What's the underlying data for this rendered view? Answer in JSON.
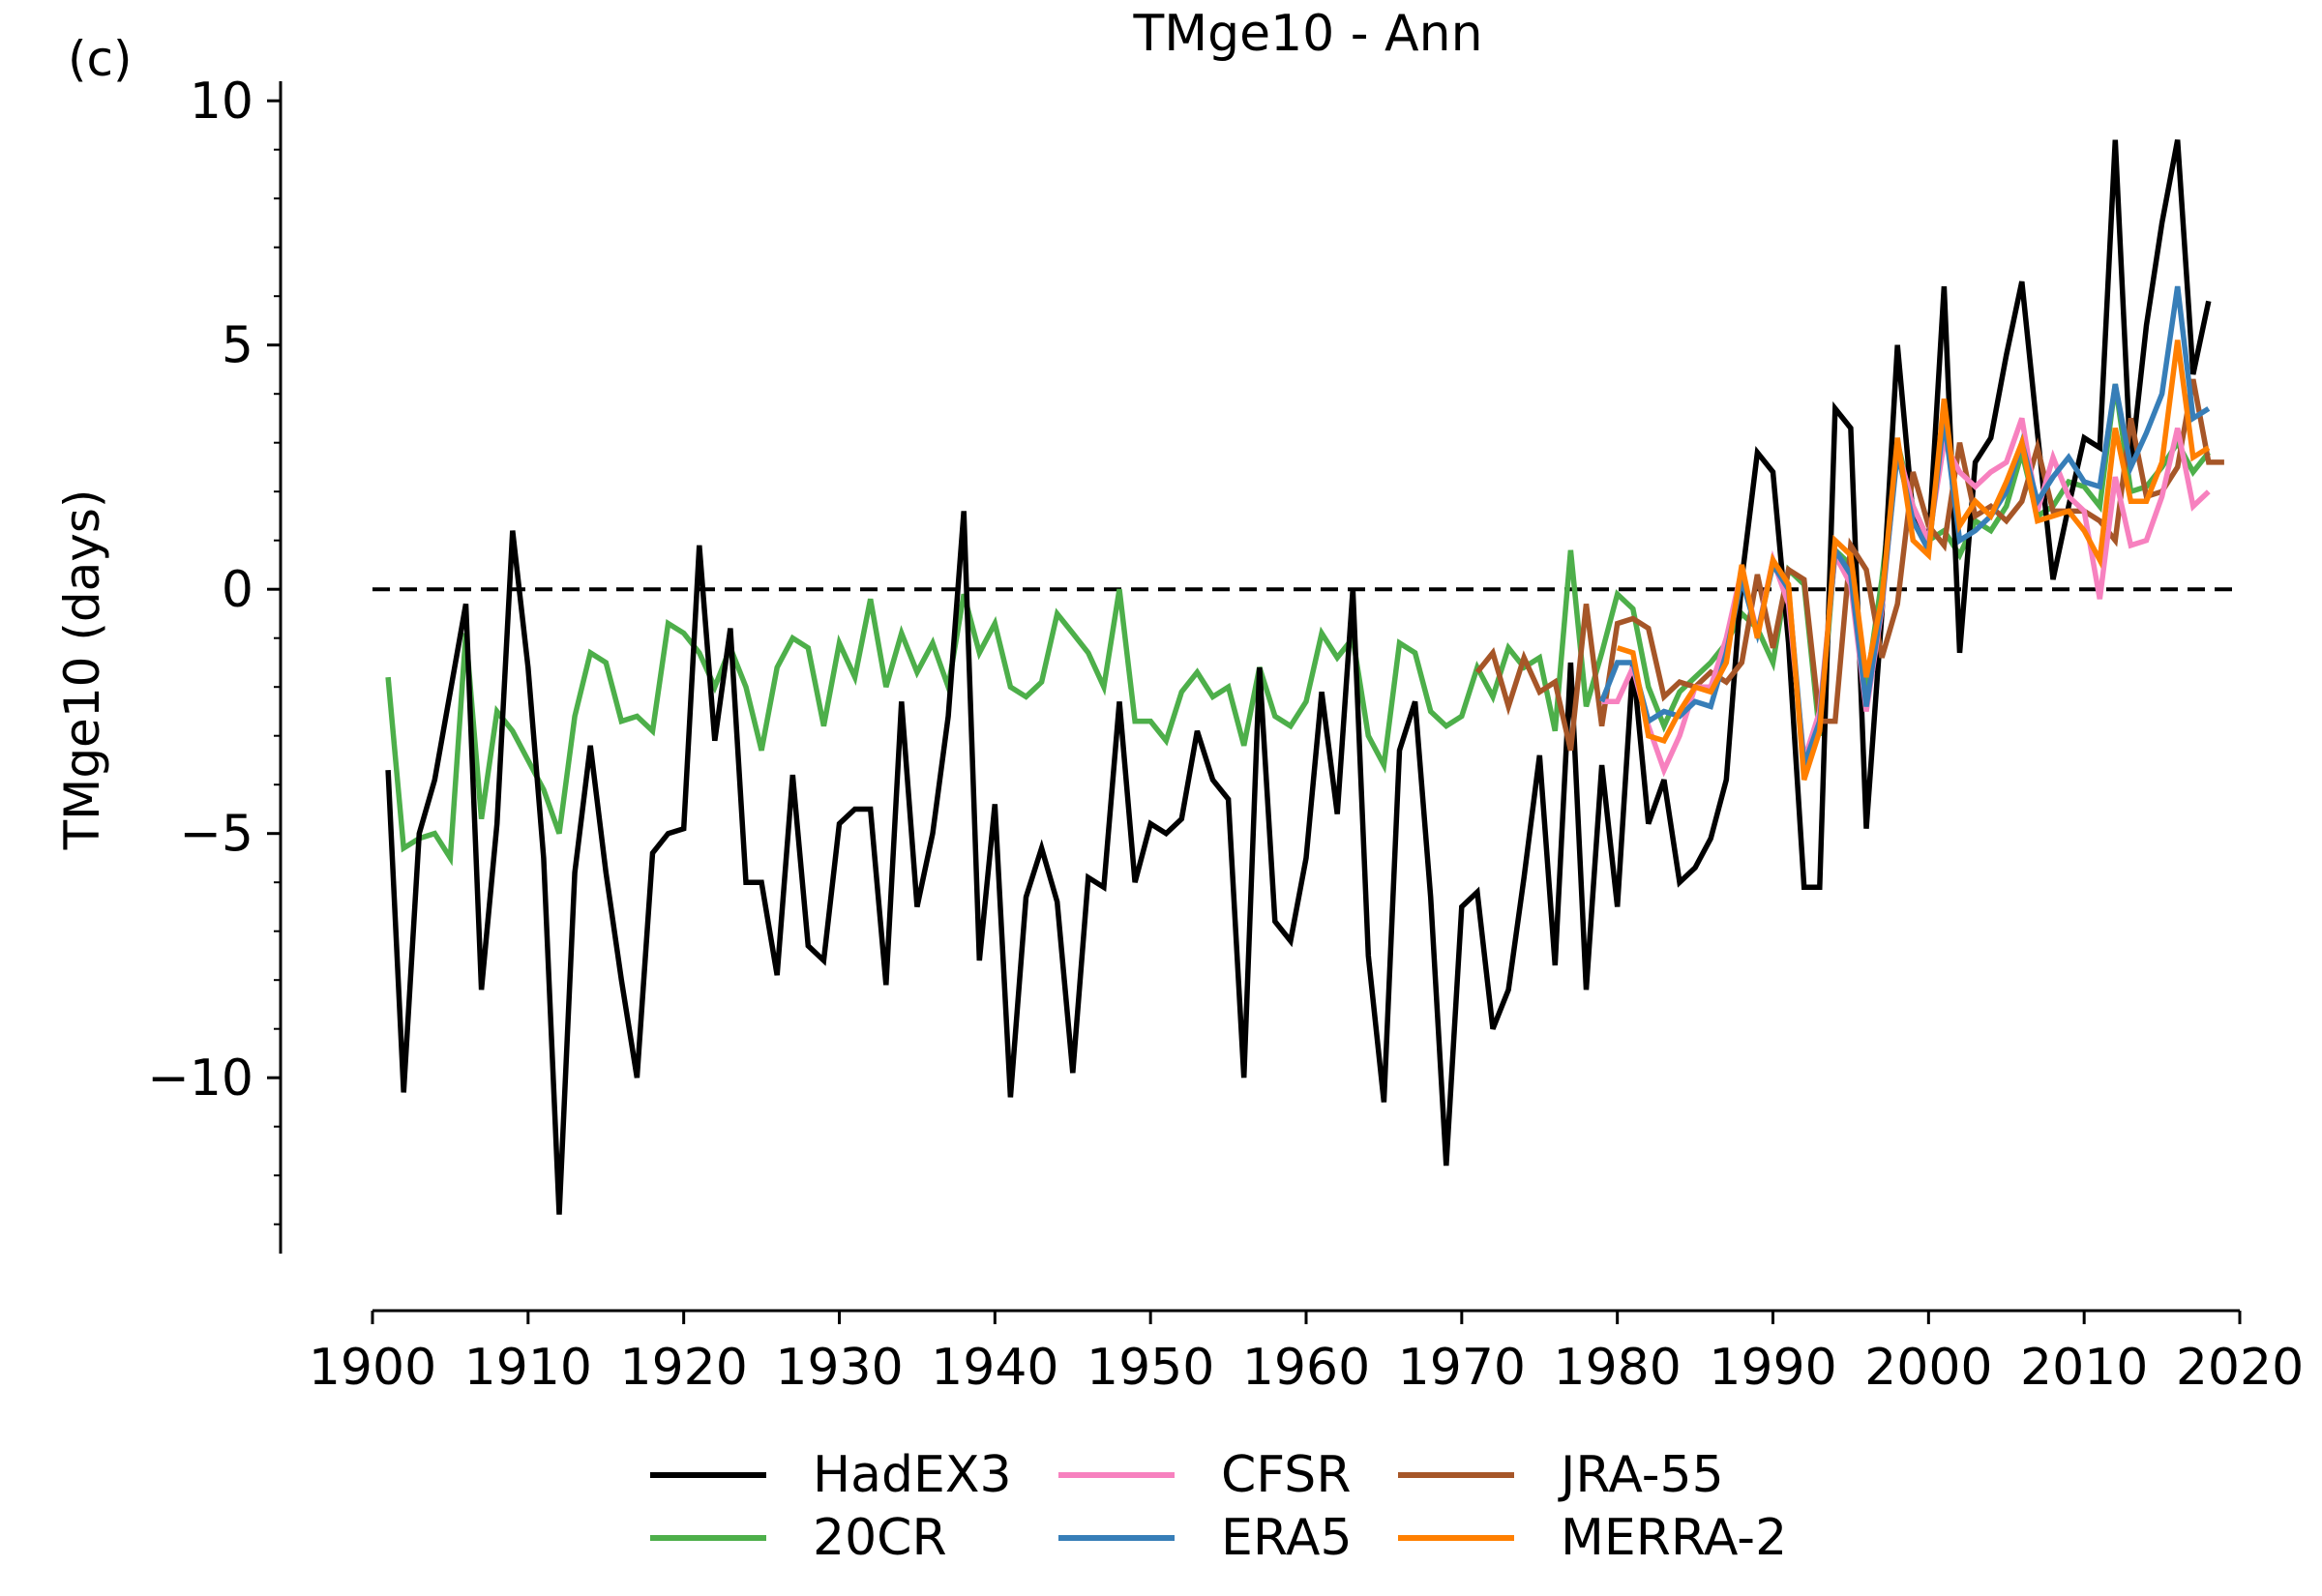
{
  "panel_label": "(c)",
  "title": "TMge10 - Ann",
  "ylabel": "TMge10 (days)",
  "chart_data": {
    "type": "line",
    "title": "TMge10 - Ann",
    "xlabel": "",
    "ylabel": "TMge10 (days)",
    "xlim": [
      1900,
      2020
    ],
    "ylim": [
      -13.6,
      10.4
    ],
    "x_ticks": [
      1900,
      1910,
      1920,
      1930,
      1940,
      1950,
      1960,
      1970,
      1980,
      1990,
      2000,
      2010,
      2020
    ],
    "x_tick_labels": [
      "1900",
      "1910",
      "1920",
      "1930",
      "1940",
      "1950",
      "1960",
      "1970",
      "1980",
      "1990",
      "2000",
      "2010",
      "2020"
    ],
    "y_ticks": [
      -10,
      -5,
      0,
      5,
      10
    ],
    "y_tick_labels": [
      "−10",
      "−5",
      "0",
      "5",
      "10"
    ],
    "y_minor_step": 1,
    "grid": false,
    "reference_line": {
      "y": 0,
      "style": "dashed",
      "color": "#000000"
    },
    "legend_position": "bottom-center",
    "series": [
      {
        "name": "HadEX3",
        "color": "#000000",
        "x_start": 1901,
        "values": [
          -3.7,
          -10.3,
          -5.0,
          -3.9,
          -2.1,
          -0.3,
          -8.2,
          -4.8,
          1.2,
          -1.6,
          -5.5,
          -12.8,
          -5.8,
          -3.2,
          -5.8,
          -8.0,
          -10.0,
          -5.4,
          -5.0,
          -4.9,
          0.9,
          -3.1,
          -0.8,
          -6.0,
          -6.0,
          -7.9,
          -3.8,
          -7.3,
          -7.6,
          -4.8,
          -4.5,
          -4.5,
          -8.1,
          -2.3,
          -6.5,
          -5.0,
          -2.6,
          1.6,
          -7.6,
          -4.4,
          -10.4,
          -6.3,
          -5.3,
          -6.4,
          -9.9,
          -5.9,
          -6.1,
          -2.3,
          -6.0,
          -4.8,
          -5.0,
          -4.7,
          -2.9,
          -3.9,
          -4.3,
          -10.0,
          -1.6,
          -6.8,
          -7.2,
          -5.5,
          -2.1,
          -4.6,
          0.0,
          -7.5,
          -10.5,
          -3.3,
          -2.3,
          -6.3,
          -11.8,
          -6.5,
          -6.2,
          -9.0,
          -8.2,
          -5.9,
          -3.4,
          -7.7,
          -1.5,
          -8.2,
          -3.6,
          -6.5,
          -1.5,
          -4.8,
          -3.9,
          -6.0,
          -5.7,
          -5.1,
          -3.9,
          0.2,
          2.8,
          2.4,
          -1.1,
          -6.1,
          -6.1,
          3.7,
          3.3,
          -4.9,
          -0.5,
          5.0,
          1.5,
          0.9,
          6.2,
          -1.3,
          2.6,
          3.1,
          4.8,
          6.3,
          3.2,
          0.2,
          1.7,
          3.1,
          2.9,
          9.2,
          2.5,
          5.4,
          7.5,
          9.2,
          4.4,
          5.9
        ]
      },
      {
        "name": "20CR",
        "color": "#4daf4a",
        "x_start": 1901,
        "values": [
          -1.8,
          -5.3,
          -5.1,
          -5.0,
          -5.5,
          -0.9,
          -4.7,
          -2.5,
          -2.9,
          -3.5,
          -4.1,
          -5.0,
          -2.6,
          -1.3,
          -1.5,
          -2.7,
          -2.6,
          -2.9,
          -0.7,
          -0.9,
          -1.3,
          -2.0,
          -1.2,
          -2.0,
          -3.3,
          -1.6,
          -1.0,
          -1.2,
          -2.8,
          -1.1,
          -1.8,
          -0.2,
          -2.0,
          -0.9,
          -1.7,
          -1.1,
          -2.0,
          -0.1,
          -1.3,
          -0.7,
          -2.0,
          -2.2,
          -1.9,
          -0.5,
          -0.9,
          -1.3,
          -2.0,
          0.0,
          -2.7,
          -2.7,
          -3.1,
          -2.1,
          -1.7,
          -2.2,
          -2.0,
          -3.2,
          -1.6,
          -2.6,
          -2.8,
          -2.3,
          -0.9,
          -1.4,
          -1.0,
          -3.0,
          -3.6,
          -1.1,
          -1.3,
          -2.5,
          -2.8,
          -2.6,
          -1.6,
          -2.2,
          -1.2,
          -1.6,
          -1.4,
          -2.9,
          0.8,
          -2.4,
          -1.3,
          -0.1,
          -0.4,
          -2.0,
          -2.8,
          -2.1,
          -1.8,
          -1.5,
          -1.1,
          -0.5,
          -0.8,
          -1.5,
          0.4,
          0.1,
          -3.0,
          0.8,
          0.5,
          -2.0,
          0.2,
          3.0,
          1.7,
          1.0,
          1.2,
          0.7,
          1.4,
          1.2,
          1.7,
          2.8,
          1.5,
          1.7,
          2.2,
          2.1,
          1.7,
          4.2,
          2.0,
          2.1,
          2.5,
          3.0,
          2.4,
          2.8
        ]
      },
      {
        "name": "CFSR",
        "color": "#f781bf",
        "x_start": 1979,
        "values": [
          -2.3,
          -2.3,
          -1.6,
          -2.8,
          -3.7,
          -3.0,
          -2.0,
          -2.0,
          -1.0,
          0.4,
          -0.9,
          0.6,
          -0.3,
          -3.5,
          -2.5,
          0.7,
          0.1,
          -2.5,
          -0.4,
          2.9,
          1.7,
          1.0,
          3.0,
          2.4,
          2.1,
          2.4,
          2.6,
          3.5,
          1.6,
          2.7,
          1.9,
          1.6,
          -0.2,
          2.3,
          0.9,
          1.0,
          1.9,
          3.3,
          1.7,
          2.0
        ]
      },
      {
        "name": "ERA5",
        "color": "#377eb8",
        "x_start": 1979,
        "values": [
          -2.3,
          -1.5,
          -1.5,
          -2.7,
          -2.5,
          -2.6,
          -2.3,
          -2.4,
          -1.3,
          0.2,
          -0.9,
          0.5,
          0.0,
          -3.6,
          -2.7,
          0.8,
          0.3,
          -2.4,
          -0.3,
          2.8,
          1.4,
          0.8,
          3.5,
          1.0,
          1.2,
          1.5,
          2.0,
          3.0,
          1.8,
          2.3,
          2.7,
          2.2,
          2.1,
          4.2,
          2.5,
          3.2,
          4.0,
          6.2,
          3.5,
          3.7
        ]
      },
      {
        "name": "JRA-55",
        "color": "#a65628",
        "x_start": 1971,
        "values": [
          -1.7,
          -1.3,
          -2.4,
          -1.4,
          -2.1,
          -1.9,
          -3.3,
          -0.3,
          -2.8,
          -0.7,
          -0.6,
          -0.8,
          -2.2,
          -1.9,
          -2.0,
          -1.7,
          -1.9,
          -1.5,
          0.3,
          -1.2,
          0.4,
          0.2,
          -2.7,
          -2.7,
          0.9,
          0.4,
          -1.4,
          -0.3,
          2.4,
          1.3,
          0.9,
          3.0,
          1.5,
          1.7,
          1.4,
          1.8,
          2.9,
          1.6,
          1.6,
          1.6,
          1.4,
          1.0,
          3.5,
          1.9,
          2.0,
          2.5,
          4.3,
          2.6,
          2.6
        ]
      },
      {
        "name": "MERRA-2",
        "color": "#ff7f00",
        "x_start": 1980,
        "values": [
          -1.2,
          -1.3,
          -3.0,
          -3.1,
          -2.5,
          -2.0,
          -2.1,
          -1.5,
          0.5,
          -1.0,
          0.6,
          0.1,
          -3.9,
          -2.9,
          1.0,
          0.7,
          -1.8,
          -0.2,
          3.1,
          1.0,
          0.7,
          3.9,
          1.3,
          1.8,
          1.5,
          2.2,
          3.0,
          1.4,
          1.5,
          1.6,
          1.2,
          0.6,
          3.3,
          1.8,
          1.8,
          2.6,
          5.1,
          2.7,
          2.9
        ]
      }
    ]
  }
}
